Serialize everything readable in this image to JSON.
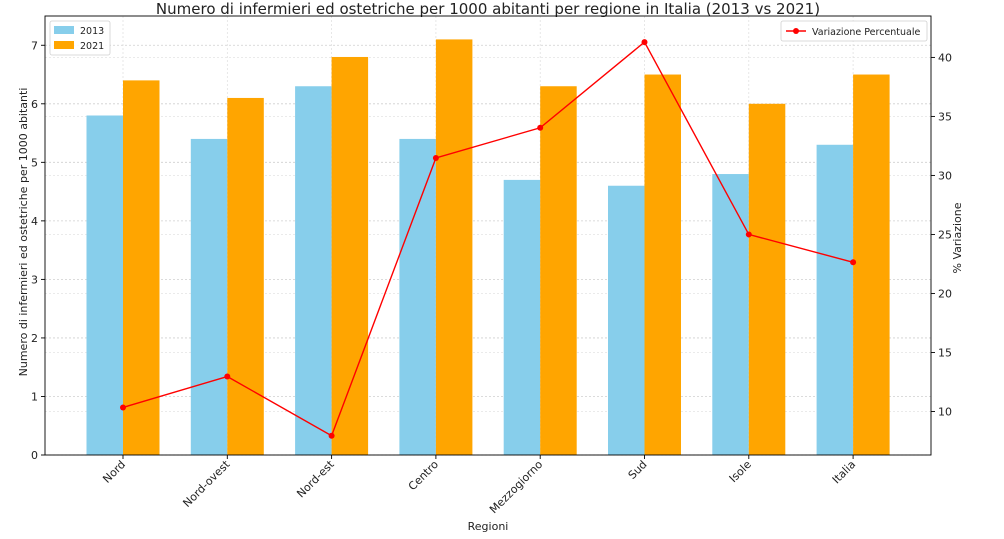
{
  "chart_data": {
    "type": "bar",
    "title": "Numero di infermieri ed ostetriche per 1000 abitanti per regione in Italia (2013 vs 2021)",
    "xlabel": "Regioni",
    "ylabel": "Numero di infermieri ed ostetriche per 1000 abitanti",
    "ylabel_right": "% Variazione",
    "categories": [
      "Nord",
      "Nord-ovest",
      "Nord-est",
      "Centro",
      "Mezzogiorno",
      "Sud",
      "Isole",
      "Italia"
    ],
    "series": [
      {
        "name": "2013",
        "type": "bar",
        "color": "#87CEEB",
        "values": [
          5.8,
          5.4,
          6.3,
          5.4,
          4.7,
          4.6,
          4.8,
          5.3
        ]
      },
      {
        "name": "2021",
        "type": "bar",
        "color": "#FFA500",
        "values": [
          6.4,
          6.1,
          6.8,
          7.1,
          6.3,
          6.5,
          6.0,
          6.5
        ]
      },
      {
        "name": "Variazione Percentuale",
        "type": "line",
        "axis": "right",
        "color": "#FF0000",
        "values": [
          10.34,
          12.96,
          7.94,
          31.48,
          34.04,
          41.3,
          25.0,
          22.64
        ]
      }
    ],
    "ylim": [
      0,
      7.5
    ],
    "y_ticks": [
      "0",
      "1",
      "2",
      "3",
      "4",
      "5",
      "6",
      "7"
    ],
    "y2lim": [
      6.31,
      43.51
    ],
    "y2_ticks": [
      "10",
      "15",
      "20",
      "25",
      "30",
      "35",
      "40"
    ],
    "grid": true,
    "legend_left": {
      "placement": "top-left",
      "entries": [
        "2013",
        "2021"
      ]
    },
    "legend_right": {
      "placement": "top-right",
      "entries": [
        "Variazione Percentuale"
      ]
    }
  }
}
